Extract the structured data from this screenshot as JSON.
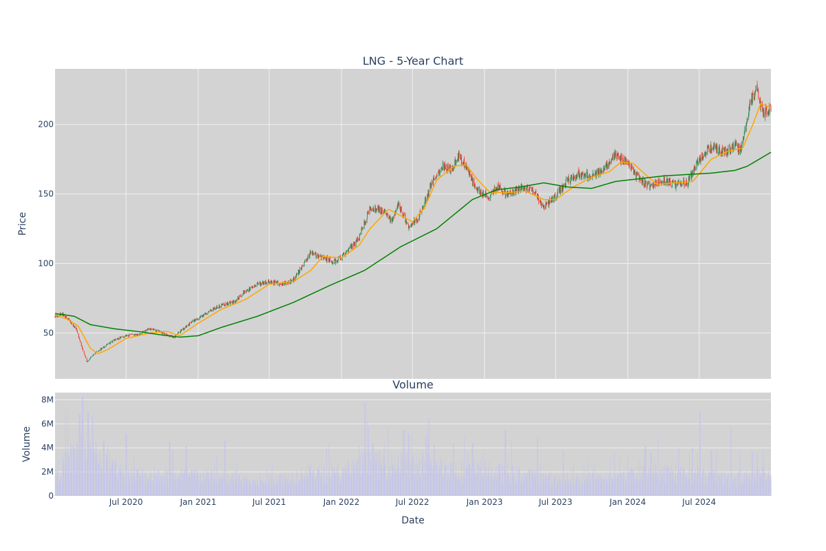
{
  "colors": {
    "plot_background": "#d3d3d3",
    "grid": "#f0f0f0",
    "text": "#2a3f5f",
    "candle_up": "#2e8b57",
    "candle_down": "#ef3b2c",
    "ma_short": "#ffa500",
    "ma_long": "#008000",
    "volume": "#c6c6ea"
  },
  "chart_data": [
    {
      "type": "candlestick",
      "title": "LNG - 5-Year Chart",
      "ylabel": "Price",
      "ylim": [
        17,
        240
      ],
      "yticks": [
        {
          "value": 50,
          "label": "50"
        },
        {
          "value": 100,
          "label": "100"
        },
        {
          "value": 150,
          "label": "150"
        },
        {
          "value": 200,
          "label": "200"
        }
      ],
      "xlim": [
        "2020-01-02",
        "2024-12-31"
      ],
      "grid": true,
      "series": [
        {
          "kind": "candlestick",
          "close_anchors": [
            [
              "2020-01-02",
              62
            ],
            [
              "2020-01-20",
              64
            ],
            [
              "2020-02-10",
              58
            ],
            [
              "2020-02-25",
              53
            ],
            [
              "2020-03-10",
              40
            ],
            [
              "2020-03-23",
              29
            ],
            [
              "2020-04-10",
              35
            ],
            [
              "2020-05-01",
              39
            ],
            [
              "2020-06-01",
              45
            ],
            [
              "2020-07-01",
              48
            ],
            [
              "2020-08-01",
              49
            ],
            [
              "2020-09-01",
              53
            ],
            [
              "2020-10-01",
              50
            ],
            [
              "2020-11-01",
              47
            ],
            [
              "2020-11-20",
              52
            ],
            [
              "2020-12-15",
              58
            ],
            [
              "2021-01-10",
              62
            ],
            [
              "2021-02-01",
              66
            ],
            [
              "2021-03-01",
              70
            ],
            [
              "2021-04-01",
              72
            ],
            [
              "2021-05-01",
              80
            ],
            [
              "2021-06-01",
              85
            ],
            [
              "2021-07-01",
              87
            ],
            [
              "2021-08-01",
              85
            ],
            [
              "2021-09-01",
              88
            ],
            [
              "2021-10-15",
              108
            ],
            [
              "2021-11-15",
              104
            ],
            [
              "2021-12-15",
              101
            ],
            [
              "2022-01-15",
              108
            ],
            [
              "2022-02-15",
              118
            ],
            [
              "2022-03-15",
              140
            ],
            [
              "2022-04-15",
              138
            ],
            [
              "2022-05-10",
              130
            ],
            [
              "2022-05-25",
              143
            ],
            [
              "2022-06-20",
              127
            ],
            [
              "2022-07-15",
              132
            ],
            [
              "2022-08-20",
              158
            ],
            [
              "2022-09-15",
              170
            ],
            [
              "2022-10-10",
              168
            ],
            [
              "2022-10-25",
              178
            ],
            [
              "2022-11-20",
              168
            ],
            [
              "2022-12-10",
              153
            ],
            [
              "2023-01-10",
              148
            ],
            [
              "2023-02-01",
              155
            ],
            [
              "2023-03-01",
              150
            ],
            [
              "2023-04-10",
              155
            ],
            [
              "2023-05-10",
              150
            ],
            [
              "2023-06-01",
              140
            ],
            [
              "2023-07-01",
              148
            ],
            [
              "2023-08-01",
              160
            ],
            [
              "2023-09-01",
              165
            ],
            [
              "2023-10-01",
              163
            ],
            [
              "2023-11-01",
              167
            ],
            [
              "2023-12-01",
              178
            ],
            [
              "2024-01-01",
              172
            ],
            [
              "2024-02-01",
              160
            ],
            [
              "2024-03-01",
              155
            ],
            [
              "2024-04-01",
              160
            ],
            [
              "2024-05-01",
              157
            ],
            [
              "2024-06-01",
              158
            ],
            [
              "2024-07-01",
              175
            ],
            [
              "2024-08-01",
              184
            ],
            [
              "2024-09-01",
              180
            ],
            [
              "2024-10-01",
              185
            ],
            [
              "2024-10-15",
              181
            ],
            [
              "2024-11-10",
              218
            ],
            [
              "2024-11-25",
              225
            ],
            [
              "2024-12-10",
              208
            ],
            [
              "2024-12-31",
              212
            ]
          ]
        },
        {
          "kind": "line",
          "points": [
            [
              "2020-01-02",
              63
            ],
            [
              "2020-02-01",
              60
            ],
            [
              "2020-03-01",
              55
            ],
            [
              "2020-04-01",
              39
            ],
            [
              "2020-04-20",
              35
            ],
            [
              "2020-05-15",
              38
            ],
            [
              "2020-07-01",
              46
            ],
            [
              "2020-09-01",
              50
            ],
            [
              "2020-10-15",
              51
            ],
            [
              "2020-11-15",
              48
            ],
            [
              "2021-01-01",
              57
            ],
            [
              "2021-03-01",
              67
            ],
            [
              "2021-05-01",
              74
            ],
            [
              "2021-07-01",
              85
            ],
            [
              "2021-09-01",
              87
            ],
            [
              "2021-10-15",
              95
            ],
            [
              "2021-11-15",
              105
            ],
            [
              "2022-01-01",
              104
            ],
            [
              "2022-02-15",
              113
            ],
            [
              "2022-03-15",
              125
            ],
            [
              "2022-05-01",
              139
            ],
            [
              "2022-07-01",
              130
            ],
            [
              "2022-08-01",
              140
            ],
            [
              "2022-09-01",
              160
            ],
            [
              "2022-10-15",
              170
            ],
            [
              "2022-11-15",
              171
            ],
            [
              "2022-12-15",
              160
            ],
            [
              "2023-01-15",
              151
            ],
            [
              "2023-03-01",
              151
            ],
            [
              "2023-04-15",
              152
            ],
            [
              "2023-06-01",
              146
            ],
            [
              "2023-07-01",
              146
            ],
            [
              "2023-08-15",
              155
            ],
            [
              "2023-10-01",
              162
            ],
            [
              "2023-11-15",
              166
            ],
            [
              "2023-12-15",
              173
            ],
            [
              "2024-01-15",
              172
            ],
            [
              "2024-02-15",
              164
            ],
            [
              "2024-03-15",
              157
            ],
            [
              "2024-05-01",
              158
            ],
            [
              "2024-06-15",
              159
            ],
            [
              "2024-08-01",
              175
            ],
            [
              "2024-09-15",
              181
            ],
            [
              "2024-10-20",
              183
            ],
            [
              "2024-11-15",
              200
            ],
            [
              "2024-12-05",
              215
            ],
            [
              "2024-12-31",
              212
            ]
          ]
        },
        {
          "kind": "line",
          "points": [
            [
              "2020-01-02",
              64
            ],
            [
              "2020-02-20",
              62
            ],
            [
              "2020-04-01",
              56
            ],
            [
              "2020-06-01",
              53
            ],
            [
              "2020-08-01",
              51
            ],
            [
              "2020-10-01",
              48.5
            ],
            [
              "2020-11-15",
              47
            ],
            [
              "2021-01-01",
              48
            ],
            [
              "2021-03-01",
              54
            ],
            [
              "2021-06-01",
              62
            ],
            [
              "2021-09-01",
              72
            ],
            [
              "2021-12-01",
              84
            ],
            [
              "2022-03-01",
              95
            ],
            [
              "2022-06-01",
              112
            ],
            [
              "2022-09-01",
              125
            ],
            [
              "2022-12-01",
              146
            ],
            [
              "2023-02-01",
              153
            ],
            [
              "2023-04-01",
              155
            ],
            [
              "2023-06-01",
              158
            ],
            [
              "2023-08-01",
              155
            ],
            [
              "2023-10-01",
              154
            ],
            [
              "2023-12-01",
              159
            ],
            [
              "2024-02-01",
              161
            ],
            [
              "2024-04-01",
              163
            ],
            [
              "2024-06-01",
              164
            ],
            [
              "2024-08-01",
              165
            ],
            [
              "2024-10-01",
              167
            ],
            [
              "2024-11-01",
              170
            ],
            [
              "2024-12-31",
              180
            ]
          ]
        }
      ]
    },
    {
      "type": "bar",
      "title": "Volume",
      "ylabel": "Volume",
      "xlabel": "Date",
      "ylim": [
        0,
        8600000
      ],
      "yticks": [
        {
          "value": 0,
          "label": "0"
        },
        {
          "value": 2000000,
          "label": "2M"
        },
        {
          "value": 4000000,
          "label": "4M"
        },
        {
          "value": 6000000,
          "label": "6M"
        },
        {
          "value": 8000000,
          "label": "8M"
        }
      ],
      "xticks": [
        {
          "value": "2020-07-01",
          "label": "Jul 2020"
        },
        {
          "value": "2021-01-01",
          "label": "Jan 2021"
        },
        {
          "value": "2021-07-01",
          "label": "Jul 2021"
        },
        {
          "value": "2022-01-01",
          "label": "Jan 2022"
        },
        {
          "value": "2022-07-01",
          "label": "Jul 2022"
        },
        {
          "value": "2023-01-01",
          "label": "Jan 2023"
        },
        {
          "value": "2023-07-01",
          "label": "Jul 2023"
        },
        {
          "value": "2024-01-01",
          "label": "Jan 2024"
        },
        {
          "value": "2024-07-01",
          "label": "Jul 2024"
        }
      ],
      "typical_volume_anchors": [
        [
          "2020-01-02",
          2000000
        ],
        [
          "2020-03-01",
          4000000
        ],
        [
          "2020-04-15",
          3500000
        ],
        [
          "2020-06-01",
          2200000
        ],
        [
          "2020-09-01",
          1700000
        ],
        [
          "2021-01-01",
          1800000
        ],
        [
          "2021-06-01",
          1200000
        ],
        [
          "2021-10-15",
          2000000
        ],
        [
          "2022-01-01",
          1800000
        ],
        [
          "2022-03-01",
          2800000
        ],
        [
          "2022-07-01",
          2800000
        ],
        [
          "2022-11-01",
          2300000
        ],
        [
          "2023-03-01",
          2000000
        ],
        [
          "2023-07-01",
          1500000
        ],
        [
          "2023-12-01",
          1500000
        ],
        [
          "2024-03-01",
          2200000
        ],
        [
          "2024-07-01",
          1800000
        ],
        [
          "2024-10-01",
          1500000
        ],
        [
          "2024-12-31",
          2000000
        ]
      ],
      "spikes": [
        [
          "2020-03-12",
          8300000
        ],
        [
          "2020-03-26",
          7000000
        ],
        [
          "2020-04-06",
          6600000
        ],
        [
          "2020-03-04",
          6800000
        ],
        [
          "2020-02-28",
          4400000
        ],
        [
          "2020-05-05",
          4600000
        ],
        [
          "2020-07-01",
          5200000
        ],
        [
          "2020-10-20",
          4500000
        ],
        [
          "2020-12-01",
          4100000
        ],
        [
          "2021-03-10",
          4600000
        ],
        [
          "2022-03-02",
          7800000
        ],
        [
          "2022-03-10",
          4600000
        ],
        [
          "2022-03-22",
          4400000
        ],
        [
          "2022-06-09",
          5500000
        ],
        [
          "2022-06-21",
          5200000
        ],
        [
          "2022-08-05",
          4900000
        ],
        [
          "2022-08-12",
          6400000
        ],
        [
          "2022-08-26",
          4300000
        ],
        [
          "2022-10-14",
          4400000
        ],
        [
          "2022-12-01",
          4400000
        ],
        [
          "2023-02-23",
          5500000
        ],
        [
          "2023-05-15",
          4800000
        ],
        [
          "2023-07-21",
          3800000
        ],
        [
          "2024-02-15",
          4100000
        ],
        [
          "2024-02-29",
          3600000
        ],
        [
          "2024-05-10",
          4000000
        ],
        [
          "2024-06-14",
          4000000
        ],
        [
          "2024-07-03",
          7000000
        ],
        [
          "2024-08-01",
          3800000
        ],
        [
          "2024-09-20",
          5700000
        ],
        [
          "2024-11-13",
          3700000
        ],
        [
          "2024-11-25",
          3500000
        ]
      ]
    }
  ]
}
